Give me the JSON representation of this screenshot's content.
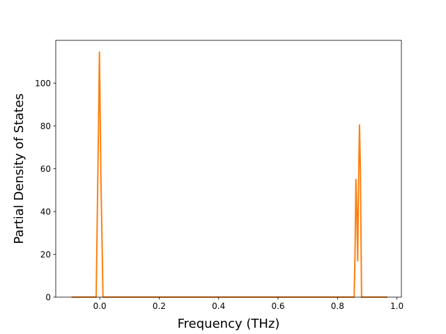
{
  "chart_data": {
    "type": "line",
    "title": "",
    "xlabel": "Frequency (THz)",
    "ylabel": "Partial Density of States",
    "xlim": [
      -0.148,
      1.015
    ],
    "ylim": [
      0,
      120
    ],
    "xticks": [
      0.0,
      0.2,
      0.4,
      0.6,
      0.8,
      1.0
    ],
    "xtick_labels": [
      "0.0",
      "0.2",
      "0.4",
      "0.6",
      "0.8",
      "1.0"
    ],
    "yticks": [
      0,
      20,
      40,
      60,
      80,
      100
    ],
    "ytick_labels": [
      "0",
      "20",
      "40",
      "60",
      "80",
      "100"
    ],
    "grid": false,
    "legend": "none",
    "series": [
      {
        "color": "#ff7f0e",
        "x": [
          -0.095,
          -0.012,
          -0.006,
          -0.001,
          0.004,
          0.011,
          0.856,
          0.859,
          0.862,
          0.865,
          0.868,
          0.871,
          0.874,
          0.877,
          0.881,
          0.968
        ],
        "y": [
          0,
          0,
          60,
          114.5,
          55,
          0,
          0,
          20,
          55,
          40,
          17,
          55,
          80.5,
          60,
          0,
          0
        ]
      }
    ]
  }
}
